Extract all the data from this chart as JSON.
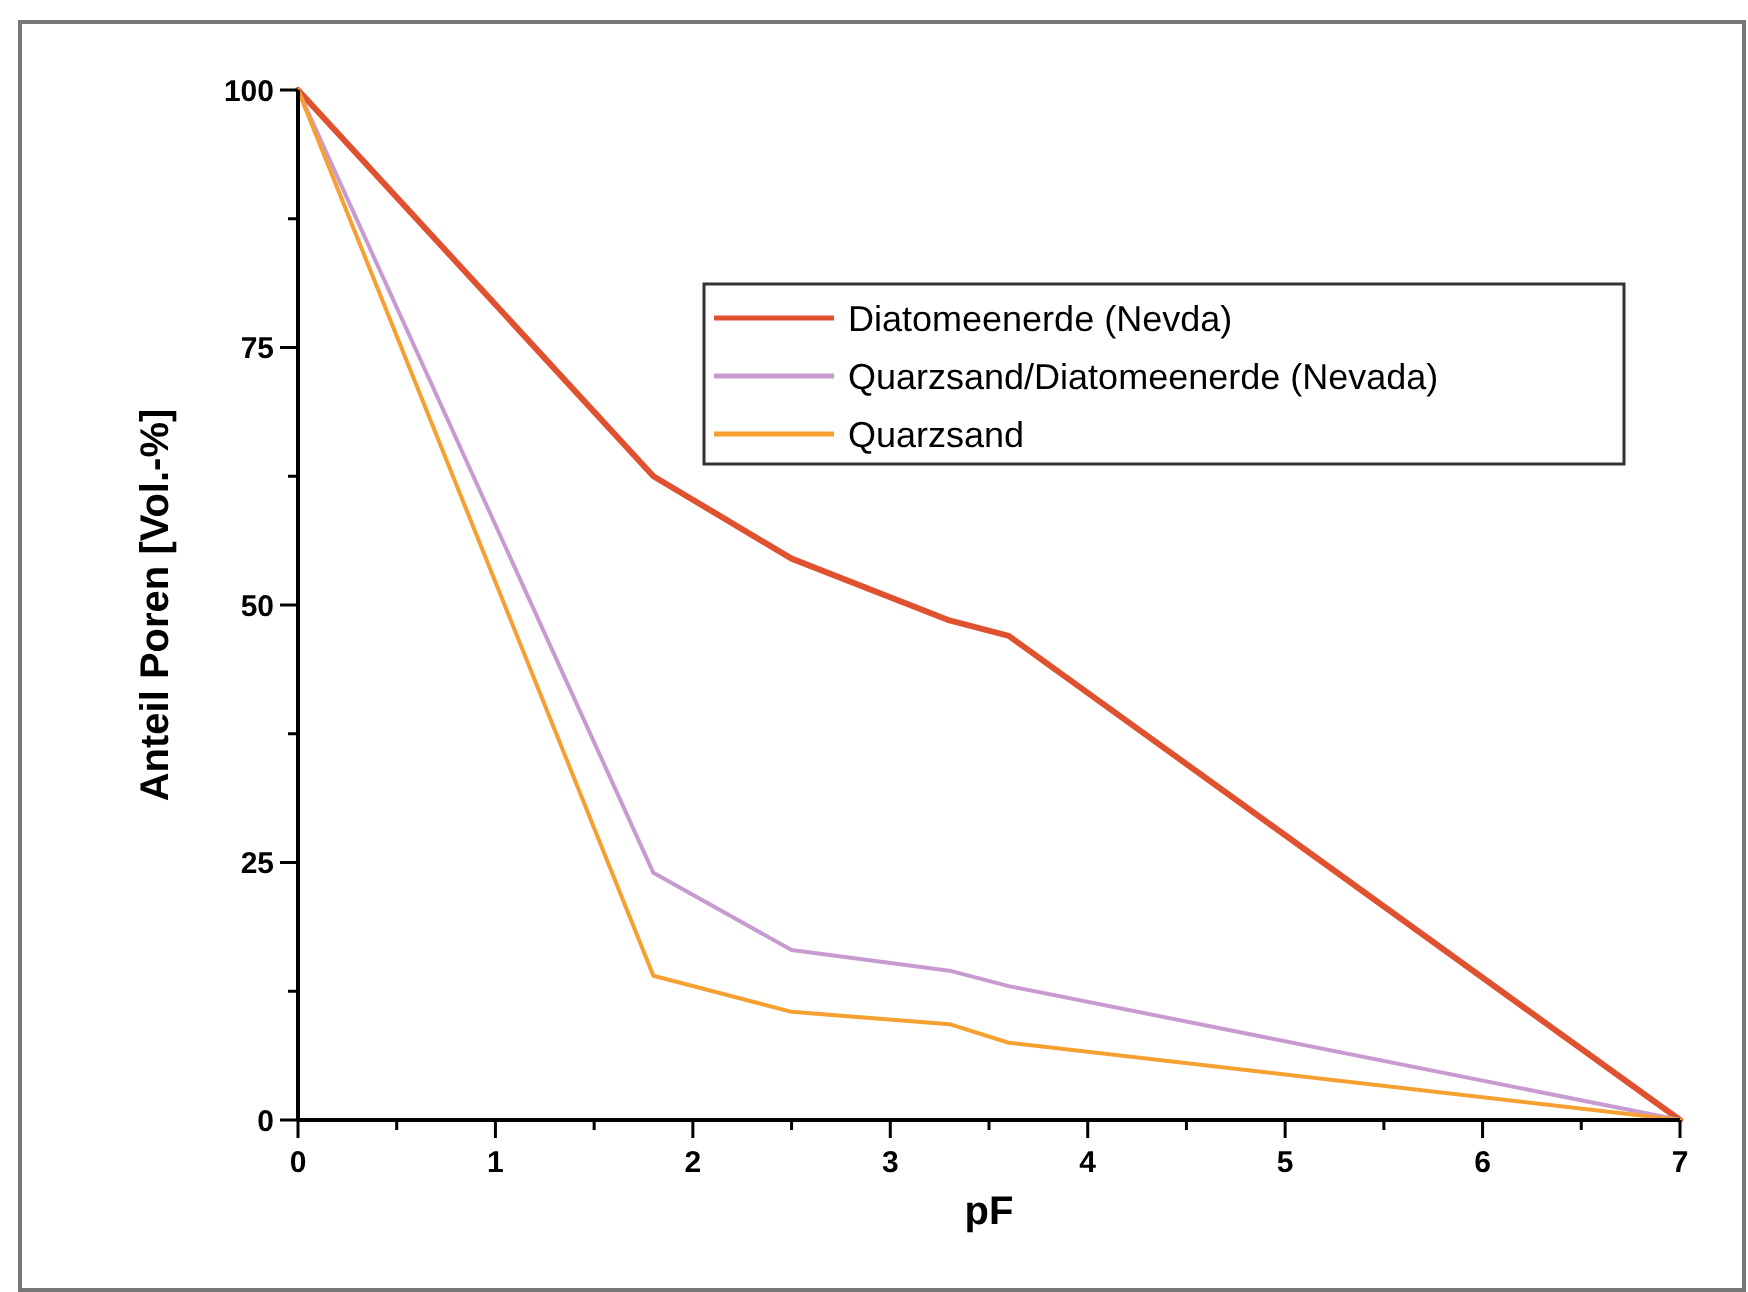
{
  "chart_data": {
    "type": "line",
    "xlabel": "pF",
    "ylabel": "Anteil Poren [Vol.-%]",
    "x": [
      0,
      1.8,
      2.5,
      3.3,
      3.6,
      7
    ],
    "series": [
      {
        "name": "Diatomeenerde (Nevda)",
        "color": "#e0522f",
        "values": [
          100,
          62.5,
          54.5,
          48.5,
          47,
          0
        ]
      },
      {
        "name": "Quarzsand/Diatomeenerde (Nevada)",
        "color": "#c89bd0",
        "values": [
          100,
          24,
          16.5,
          14.5,
          13,
          0
        ]
      },
      {
        "name": "Quarzsand",
        "color": "#f5a030",
        "values": [
          100,
          14,
          10.5,
          9.3,
          7.5,
          0
        ]
      }
    ],
    "xlim": [
      0,
      7
    ],
    "ylim": [
      0,
      100
    ],
    "xticks": [
      0,
      {
        "value": 0.5,
        "label": null
      },
      1,
      {
        "value": 1.5,
        "label": null
      },
      2,
      {
        "value": 2.5,
        "label": null
      },
      3,
      {
        "value": 3.5,
        "label": null
      },
      4,
      {
        "value": 4.5,
        "label": null
      },
      5,
      {
        "value": 5.5,
        "label": null
      },
      6,
      {
        "value": 6.5,
        "label": null
      },
      7
    ],
    "yticks": [
      0,
      {
        "value": 12.5,
        "label": null
      },
      25,
      {
        "value": 37.5,
        "label": null
      },
      50,
      {
        "value": 62.5,
        "label": null
      },
      75,
      {
        "value": 87.5,
        "label": null
      },
      100
    ],
    "legend": "top right",
    "grid": false,
    "marker": "none",
    "line_style": "solid"
  }
}
